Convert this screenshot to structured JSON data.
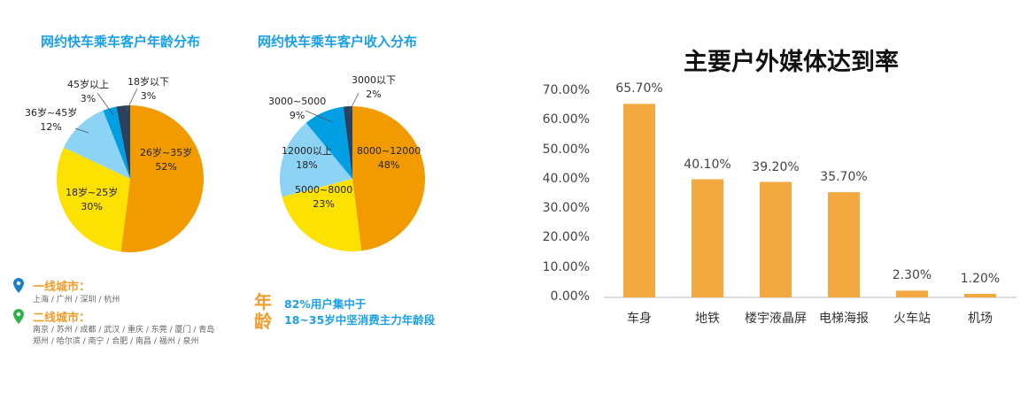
{
  "chart_data": [
    {
      "type": "pie",
      "title": "网约快车乘车客户年龄分布",
      "slices": [
        {
          "label": "26岁~35岁",
          "value": 52,
          "display": "52%",
          "color": "#f29b00"
        },
        {
          "label": "18岁~25岁",
          "value": 30,
          "display": "30%",
          "color": "#fde100"
        },
        {
          "label": "36岁~45岁",
          "value": 12,
          "display": "12%",
          "color": "#8dd3f5"
        },
        {
          "label": "45岁以上",
          "value": 3,
          "display": "3%",
          "color": "#009ee3"
        },
        {
          "label": "18岁以下",
          "value": 3,
          "display": "3%",
          "color": "#2b4160"
        }
      ]
    },
    {
      "type": "pie",
      "title": "网约快车乘车客户收入分布",
      "slices": [
        {
          "label": "8000~12000",
          "value": 48,
          "display": "48%",
          "color": "#f29b00"
        },
        {
          "label": "5000~8000",
          "value": 23,
          "display": "23%",
          "color": "#fde100"
        },
        {
          "label": "12000以上",
          "value": 18,
          "display": "18%",
          "color": "#8dd3f5"
        },
        {
          "label": "3000~5000",
          "value": 9,
          "display": "9%",
          "color": "#009ee3"
        },
        {
          "label": "3000以下",
          "value": 2,
          "display": "2%",
          "color": "#2b4160"
        }
      ]
    },
    {
      "type": "bar",
      "title": "主要户外媒体达到率",
      "categories": [
        "车身",
        "地铁",
        "楼宇液晶屏",
        "电梯海报",
        "火车站",
        "机场"
      ],
      "values": [
        65.7,
        40.1,
        39.2,
        35.7,
        2.3,
        1.2
      ],
      "data_labels": [
        "65.70%",
        "40.10%",
        "39.20%",
        "35.70%",
        "2.30%",
        "1.20%"
      ],
      "yticks": [
        "0.00%",
        "10.00%",
        "20.00%",
        "30.00%",
        "40.00%",
        "50.00%",
        "60.00%",
        "70.00%"
      ],
      "ylim": [
        0,
        70
      ],
      "grid": false,
      "bar_color": "#f3a93f"
    }
  ],
  "cities": {
    "tier1_title": "一线城市：",
    "tier1": "上海 / 广州 / 深圳 / 杭州",
    "tier2_title": "二线城市：",
    "tier2_line1": "南京 / 苏州 / 成都 / 武汉 / 重庆 / 东莞 / 厦门 / 青岛",
    "tier2_line2": "郑州 / 哈尔滨 / 南宁 / 合肥 / 南昌 / 福州 / 泉州",
    "tier1_pin_color": "#1a7fc4",
    "tier2_pin_color": "#2fb24a"
  },
  "age_note": {
    "big1": "年",
    "big2": "龄",
    "line1": "82%用户集中于",
    "line2": "18~35岁中坚消费主力年龄段"
  }
}
